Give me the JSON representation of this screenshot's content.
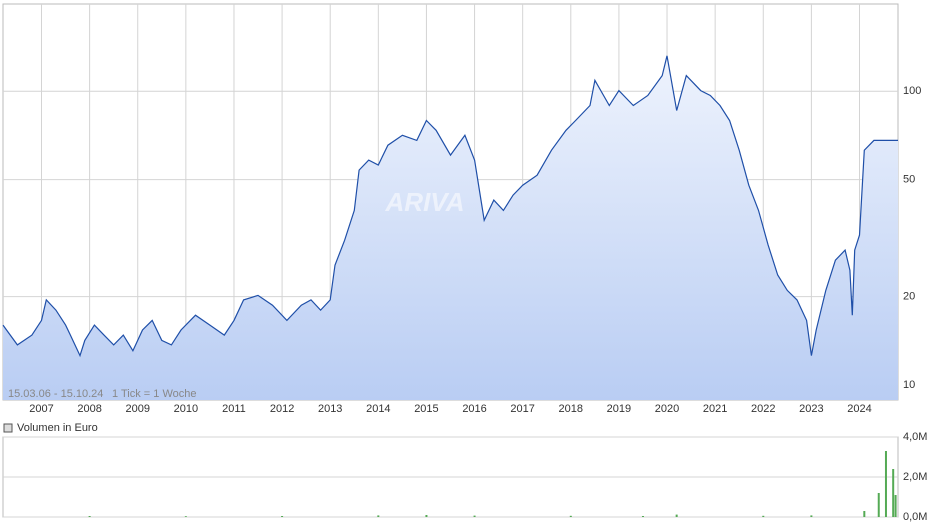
{
  "chart_data": [
    {
      "type": "line",
      "log_scale": true,
      "grid": true,
      "watermark": "ARIVA",
      "range_label": "15.03.06 - 15.10.24",
      "tick_note": "1 Tick = 1 Woche",
      "x": [
        2006.2,
        2006.5,
        2006.8,
        2007.0,
        2007.1,
        2007.3,
        2007.5,
        2007.6,
        2007.8,
        2007.9,
        2008.1,
        2008.3,
        2008.5,
        2008.7,
        2008.9,
        2009.1,
        2009.3,
        2009.5,
        2009.7,
        2009.9,
        2010.2,
        2010.5,
        2010.8,
        2011.0,
        2011.2,
        2011.5,
        2011.8,
        2012.1,
        2012.4,
        2012.6,
        2012.8,
        2013.0,
        2013.1,
        2013.3,
        2013.5,
        2013.6,
        2013.8,
        2014.0,
        2014.2,
        2014.5,
        2014.8,
        2015.0,
        2015.2,
        2015.5,
        2015.8,
        2016.0,
        2016.2,
        2016.4,
        2016.6,
        2016.8,
        2017.0,
        2017.3,
        2017.6,
        2017.9,
        2018.1,
        2018.4,
        2018.5,
        2018.8,
        2019.0,
        2019.3,
        2019.6,
        2019.9,
        2020.0,
        2020.2,
        2020.4,
        2020.7,
        2020.9,
        2021.1,
        2021.3,
        2021.5,
        2021.7,
        2021.9,
        2022.1,
        2022.3,
        2022.5,
        2022.7,
        2022.9,
        2023.0,
        2023.1,
        2023.3,
        2023.5,
        2023.7,
        2023.8,
        2023.85,
        2023.9,
        2024.0,
        2024.1,
        2024.3,
        2024.6,
        2024.8
      ],
      "series": [
        {
          "color": "#1f4fa8",
          "values": [
            16.0,
            13.7,
            14.8,
            16.6,
            19.5,
            18.0,
            16.0,
            14.8,
            12.6,
            14.2,
            16.0,
            14.8,
            13.7,
            14.8,
            13.1,
            15.4,
            16.6,
            14.2,
            13.7,
            15.4,
            17.3,
            16.0,
            14.8,
            16.6,
            19.5,
            20.2,
            18.7,
            16.6,
            18.7,
            19.5,
            18.0,
            19.5,
            25.6,
            31.1,
            39.3,
            53.9,
            58.3,
            56.1,
            65.5,
            70.8,
            68.0,
            79.5,
            73.6,
            60.6,
            70.8,
            58.3,
            36.4,
            42.6,
            39.3,
            44.3,
            47.9,
            51.8,
            63.0,
            73.6,
            79.5,
            89.4,
            108.9,
            89.4,
            100.5,
            89.4,
            96.7,
            113,
            132,
            86,
            113,
            100.5,
            96.7,
            89.4,
            79.5,
            63.0,
            47.9,
            39.3,
            30,
            23.7,
            21.0,
            19.5,
            16.6,
            12.6,
            15.4,
            21.0,
            26.6,
            28.8,
            24.6,
            17.3,
            28.8,
            32.4,
            63.0,
            68.0,
            68.0,
            68.0
          ]
        }
      ],
      "xlim": [
        2006.2,
        2024.8
      ],
      "xticks": [
        2007,
        2008,
        2009,
        2010,
        2011,
        2012,
        2013,
        2014,
        2015,
        2016,
        2017,
        2018,
        2019,
        2020,
        2021,
        2022,
        2023,
        2024
      ],
      "ylim": [
        8.9,
        198
      ],
      "yticks": [
        10,
        20,
        50,
        100
      ]
    },
    {
      "type": "bar",
      "grid": true,
      "x": [
        2008.0,
        2010.0,
        2012.0,
        2014.0,
        2015.0,
        2016.0,
        2018.0,
        2019.5,
        2020.2,
        2022.0,
        2023.0,
        2024.1,
        2024.4,
        2024.55,
        2024.7,
        2024.75
      ],
      "series": [
        {
          "name": "Volumen in Euro",
          "color": "#55aa55",
          "values": [
            0.05,
            0.04,
            0.05,
            0.08,
            0.1,
            0.07,
            0.06,
            0.05,
            0.12,
            0.06,
            0.08,
            0.3,
            1.2,
            3.3,
            2.4,
            1.1
          ]
        }
      ],
      "xlim": [
        2006.2,
        2024.8
      ],
      "ylim": [
        0,
        4
      ],
      "yticks": [
        {
          "value": 0,
          "label": "0,0M"
        },
        {
          "value": 2,
          "label": "2,0M"
        },
        {
          "value": 4,
          "label": "4,0M"
        }
      ]
    }
  ]
}
